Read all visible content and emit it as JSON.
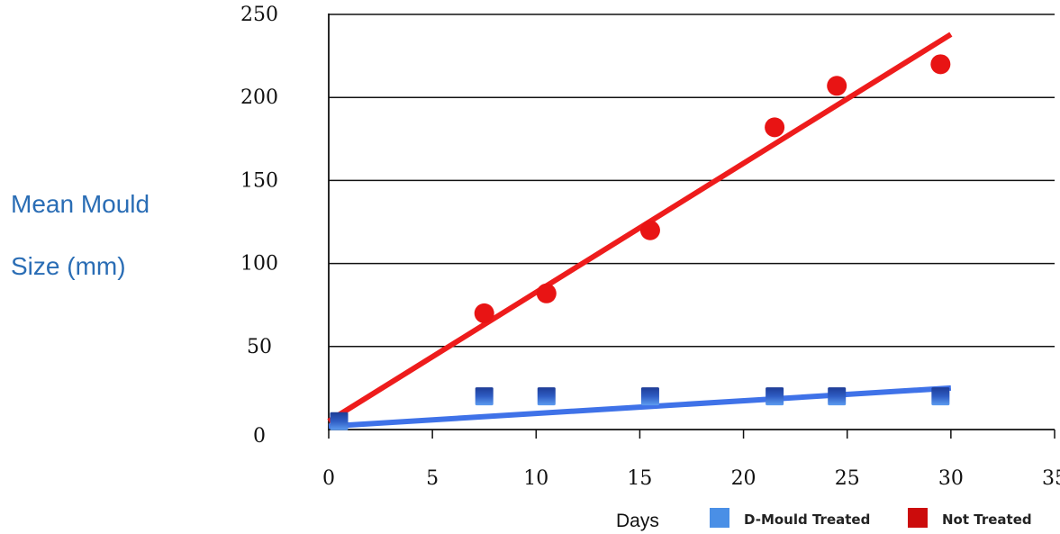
{
  "chart_data": {
    "type": "scatter",
    "ylabel_lines": [
      "Mean Mould",
      "Size (mm)"
    ],
    "xlabel": "Days",
    "xlim": [
      0,
      35
    ],
    "ylim": [
      0,
      250
    ],
    "x_ticks": [
      0,
      5,
      10,
      15,
      20,
      25,
      30,
      35
    ],
    "y_ticks": [
      0,
      50,
      100,
      150,
      200,
      250
    ],
    "grid": "horizontal",
    "legend_position": "bottom-right",
    "series": [
      {
        "name": "D-Mould Treated",
        "marker": "square",
        "color": "#3d7fe0",
        "x": [
          0.5,
          7.5,
          10.5,
          15.5,
          21.5,
          24.5,
          29.5
        ],
        "y": [
          5,
          20,
          20,
          20,
          20,
          20,
          20
        ],
        "trend": {
          "x": [
            0,
            30
          ],
          "y": [
            2,
            25
          ],
          "color": "#3f72e8"
        }
      },
      {
        "name": "Not Treated",
        "marker": "circle",
        "color": "#e81414",
        "x": [
          7.5,
          10.5,
          15.5,
          21.5,
          24.5,
          29.5
        ],
        "y": [
          70,
          82,
          120,
          182,
          207,
          220
        ],
        "trend": {
          "x": [
            0,
            30
          ],
          "y": [
            5,
            238
          ],
          "color": "#ee1c1c"
        }
      }
    ]
  }
}
